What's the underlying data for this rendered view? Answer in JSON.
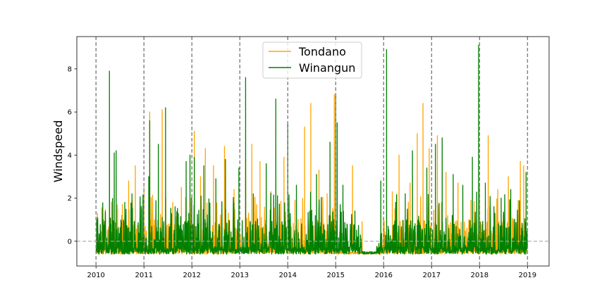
{
  "chart_data": {
    "type": "line",
    "title": "",
    "xlabel": "",
    "ylabel": "Windspeed",
    "xlim": [
      2009.6,
      2019.45
    ],
    "ylim": [
      -1.15,
      9.5
    ],
    "x_ticks": [
      2010,
      2011,
      2012,
      2013,
      2014,
      2015,
      2016,
      2017,
      2018,
      2019
    ],
    "x_tick_labels": [
      "2010",
      "2011",
      "2012",
      "2013",
      "2014",
      "2015",
      "2016",
      "2017",
      "2018",
      "2019"
    ],
    "y_ticks": [
      0,
      2,
      4,
      6,
      8
    ],
    "y_tick_labels": [
      "0",
      "2",
      "4",
      "6",
      "8"
    ],
    "vlines": [
      2010,
      2011,
      2012,
      2013,
      2014,
      2015,
      2016,
      2017,
      2018,
      2019
    ],
    "hline": 0,
    "legend_position": "upper center",
    "series_colors": {
      "Tondano": "#ffa500",
      "Winangun": "#008000"
    },
    "series": [
      {
        "name": "Tondano",
        "color": "#ffa500",
        "baseline": -0.6,
        "start": 2010.0,
        "end": 2019.0,
        "noise_seed": 7,
        "quiet_periods": [
          [
            2015.02,
            2015.95
          ]
        ],
        "peaks": [
          {
            "x": 2010.03,
            "y": 1.3
          },
          {
            "x": 2010.12,
            "y": 1.55
          },
          {
            "x": 2010.45,
            "y": 1.5
          },
          {
            "x": 2010.55,
            "y": 1.7
          },
          {
            "x": 2010.68,
            "y": 2.8
          },
          {
            "x": 2010.82,
            "y": 3.5
          },
          {
            "x": 2011.0,
            "y": 2.5
          },
          {
            "x": 2011.12,
            "y": 6.0
          },
          {
            "x": 2011.38,
            "y": 6.1
          },
          {
            "x": 2011.6,
            "y": 1.8
          },
          {
            "x": 2011.78,
            "y": 2.5
          },
          {
            "x": 2012.05,
            "y": 5.1
          },
          {
            "x": 2012.18,
            "y": 3.0
          },
          {
            "x": 2012.28,
            "y": 4.3
          },
          {
            "x": 2012.45,
            "y": 3.5
          },
          {
            "x": 2012.68,
            "y": 4.4
          },
          {
            "x": 2012.88,
            "y": 2.4
          },
          {
            "x": 2013.12,
            "y": 3.8
          },
          {
            "x": 2013.25,
            "y": 4.5
          },
          {
            "x": 2013.42,
            "y": 3.7
          },
          {
            "x": 2013.65,
            "y": 2.3
          },
          {
            "x": 2013.92,
            "y": 3.9
          },
          {
            "x": 2014.15,
            "y": 1.9
          },
          {
            "x": 2014.35,
            "y": 5.3
          },
          {
            "x": 2014.48,
            "y": 6.4
          },
          {
            "x": 2014.65,
            "y": 3.3
          },
          {
            "x": 2014.82,
            "y": 2.2
          },
          {
            "x": 2014.97,
            "y": 6.8
          },
          {
            "x": 2015.35,
            "y": 3.5
          },
          {
            "x": 2015.55,
            "y": 0.9
          },
          {
            "x": 2016.18,
            "y": 2.3
          },
          {
            "x": 2016.32,
            "y": 4.0
          },
          {
            "x": 2016.55,
            "y": 2.7
          },
          {
            "x": 2016.7,
            "y": 5.0
          },
          {
            "x": 2016.82,
            "y": 6.4
          },
          {
            "x": 2016.95,
            "y": 4.3
          },
          {
            "x": 2017.12,
            "y": 4.9
          },
          {
            "x": 2017.3,
            "y": 3.2
          },
          {
            "x": 2017.55,
            "y": 2.7
          },
          {
            "x": 2017.82,
            "y": 1.9
          },
          {
            "x": 2018.0,
            "y": 2.6
          },
          {
            "x": 2018.18,
            "y": 4.9
          },
          {
            "x": 2018.38,
            "y": 2.4
          },
          {
            "x": 2018.6,
            "y": 3.0
          },
          {
            "x": 2018.85,
            "y": 3.7
          },
          {
            "x": 2018.92,
            "y": 3.5
          }
        ]
      },
      {
        "name": "Winangun",
        "color": "#008000",
        "baseline": -0.6,
        "start": 2010.0,
        "end": 2019.0,
        "noise_seed": 13,
        "quiet_periods": [
          [
            2015.55,
            2015.85
          ]
        ],
        "peaks": [
          {
            "x": 2010.03,
            "y": 1.1
          },
          {
            "x": 2010.15,
            "y": 1.0
          },
          {
            "x": 2010.28,
            "y": 7.9
          },
          {
            "x": 2010.38,
            "y": 4.1
          },
          {
            "x": 2010.42,
            "y": 4.2
          },
          {
            "x": 2010.6,
            "y": 1.8
          },
          {
            "x": 2010.75,
            "y": 2.2
          },
          {
            "x": 2010.95,
            "y": 1.5
          },
          {
            "x": 2011.1,
            "y": 3.0
          },
          {
            "x": 2011.12,
            "y": 5.6
          },
          {
            "x": 2011.3,
            "y": 4.5
          },
          {
            "x": 2011.45,
            "y": 6.2
          },
          {
            "x": 2011.65,
            "y": 1.6
          },
          {
            "x": 2011.88,
            "y": 3.7
          },
          {
            "x": 2011.96,
            "y": 4.0
          },
          {
            "x": 2012.05,
            "y": 3.9
          },
          {
            "x": 2012.25,
            "y": 3.5
          },
          {
            "x": 2012.5,
            "y": 2.9
          },
          {
            "x": 2012.7,
            "y": 3.8
          },
          {
            "x": 2012.98,
            "y": 3.4
          },
          {
            "x": 2013.12,
            "y": 7.6
          },
          {
            "x": 2013.28,
            "y": 2.2
          },
          {
            "x": 2013.55,
            "y": 3.6
          },
          {
            "x": 2013.75,
            "y": 6.6
          },
          {
            "x": 2014.0,
            "y": 5.5
          },
          {
            "x": 2014.18,
            "y": 2.6
          },
          {
            "x": 2014.6,
            "y": 3.1
          },
          {
            "x": 2014.88,
            "y": 4.6
          },
          {
            "x": 2015.0,
            "y": 6.8
          },
          {
            "x": 2015.03,
            "y": 5.5
          },
          {
            "x": 2015.15,
            "y": 2.6
          },
          {
            "x": 2015.4,
            "y": 1.4
          },
          {
            "x": 2015.94,
            "y": 2.8
          },
          {
            "x": 2016.06,
            "y": 8.9
          },
          {
            "x": 2016.25,
            "y": 1.8
          },
          {
            "x": 2016.45,
            "y": 2.2
          },
          {
            "x": 2016.6,
            "y": 4.2
          },
          {
            "x": 2016.9,
            "y": 3.4
          },
          {
            "x": 2017.08,
            "y": 4.5
          },
          {
            "x": 2017.22,
            "y": 4.8
          },
          {
            "x": 2017.45,
            "y": 3.1
          },
          {
            "x": 2017.65,
            "y": 2.6
          },
          {
            "x": 2017.85,
            "y": 3.9
          },
          {
            "x": 2017.98,
            "y": 9.1
          },
          {
            "x": 2018.12,
            "y": 2.7
          },
          {
            "x": 2018.3,
            "y": 1.6
          },
          {
            "x": 2018.45,
            "y": 2.0
          },
          {
            "x": 2018.65,
            "y": 2.4
          },
          {
            "x": 2018.97,
            "y": 3.2
          }
        ]
      }
    ]
  }
}
